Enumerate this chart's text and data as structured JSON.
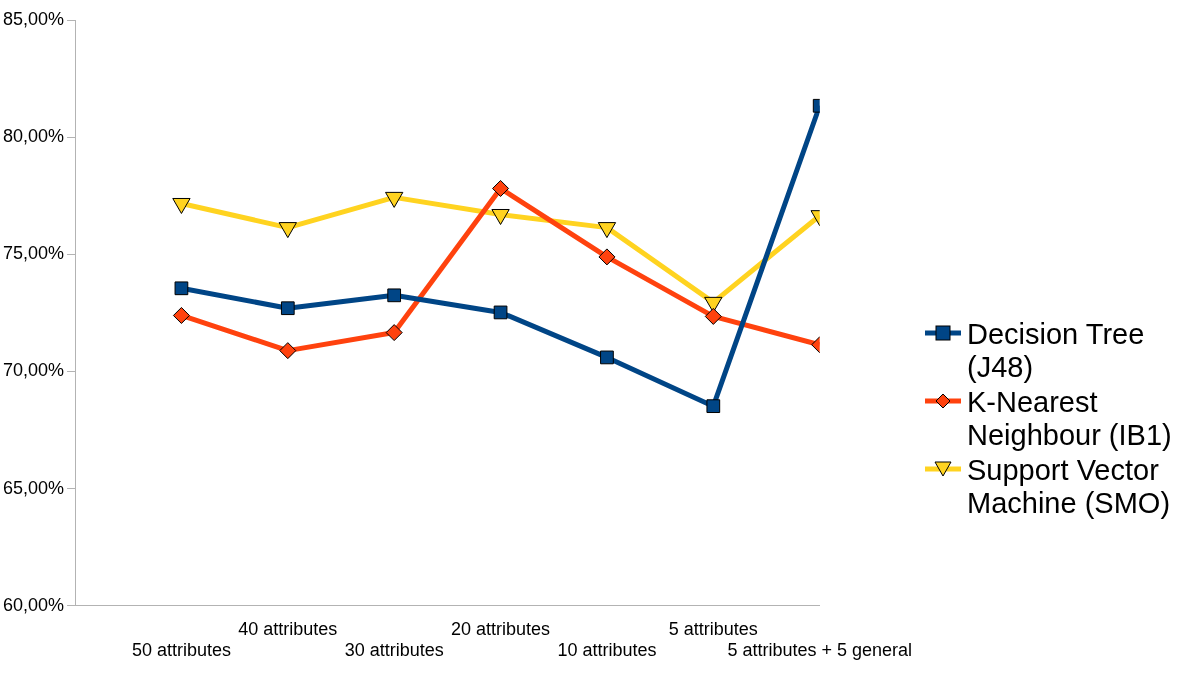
{
  "chart_data": {
    "type": "line",
    "categories": [
      "50 attributes",
      "40 attributes",
      "30 attributes",
      "20 attributes",
      "10 attributes",
      "5 attributes",
      "5 attributes + 5 general"
    ],
    "series": [
      {
        "name": "Decision Tree (J48)",
        "color": "#004586",
        "marker": "square",
        "values": [
          73.55,
          72.7,
          73.25,
          72.52,
          70.6,
          68.52,
          81.34
        ]
      },
      {
        "name": "K-Nearest Neighbour (IB1)",
        "color": "#ff420e",
        "marker": "diamond",
        "values": [
          72.39,
          70.89,
          71.66,
          77.81,
          74.89,
          72.35,
          71.14
        ]
      },
      {
        "name": "Support Vector Machine (SMO)",
        "color": "#ffd320",
        "marker": "triangle",
        "values": [
          77.17,
          76.14,
          77.43,
          76.7,
          76.14,
          72.95,
          76.65
        ]
      }
    ],
    "ylim": [
      60,
      85
    ],
    "yticks": [
      {
        "value": 60,
        "label": "60,00%"
      },
      {
        "value": 65,
        "label": "65,00%"
      },
      {
        "value": 70,
        "label": "70,00%"
      },
      {
        "value": 75,
        "label": "75,00%"
      },
      {
        "value": 80,
        "label": "80,00%"
      },
      {
        "value": 85,
        "label": "85,00%"
      }
    ],
    "grid": false,
    "legend": "right",
    "line_style": "solid"
  }
}
